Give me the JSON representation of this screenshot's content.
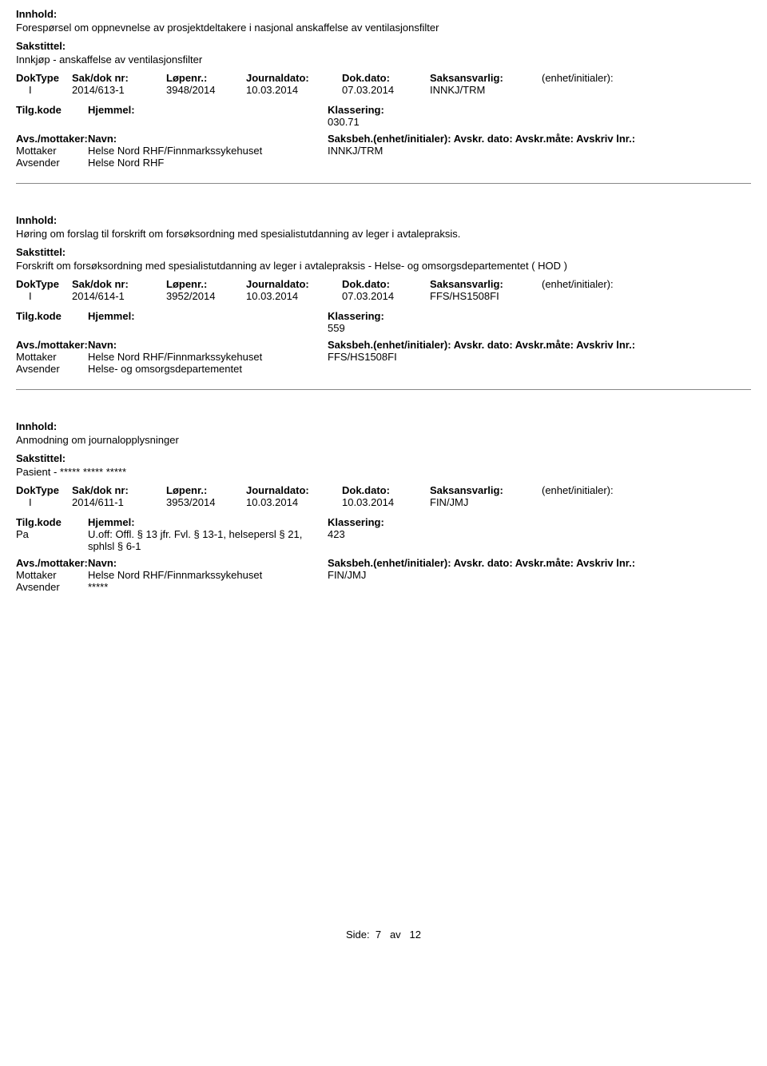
{
  "labels": {
    "innhold": "Innhold:",
    "sakstittel": "Sakstittel:",
    "doktype": "DokType",
    "sakdok": "Sak/dok nr:",
    "lopenr": "Løpenr.:",
    "journaldato": "Journaldato:",
    "dokdato": "Dok.dato:",
    "saksansvarlig": "Saksansvarlig:",
    "enhet": "(enhet/initialer):",
    "tilgkode": "Tilg.kode",
    "hjemmel": "Hjemmel:",
    "klassering": "Klassering:",
    "avsmottaker": "Avs./mottaker:",
    "navn": "Navn:",
    "saksbeh_line": "Saksbeh.(enhet/initialer): Avskr. dato:   Avskr.måte:  Avskriv lnr.:",
    "mottaker": "Mottaker",
    "avsender": "Avsender"
  },
  "records": [
    {
      "innhold": "Forespørsel om oppnevnelse av prosjektdeltakere i nasjonal anskaffelse av ventilasjonsfilter",
      "sakstittel": "Innkjøp - anskaffelse av ventilasjonsfilter",
      "doktype": "I",
      "sakdok": "2014/613-1",
      "lopenr": "3948/2014",
      "journaldato": "10.03.2014",
      "dokdato": "07.03.2014",
      "saksansvarlig": "INNKJ/TRM",
      "tilgkode": "",
      "hjemmel": "",
      "klassering": "030.71",
      "parties": [
        {
          "role_key": "mottaker",
          "navn": "Helse Nord RHF/Finnmarkssykehuset",
          "saksbeh": "INNKJ/TRM"
        },
        {
          "role_key": "avsender",
          "navn": "Helse Nord RHF",
          "saksbeh": ""
        }
      ]
    },
    {
      "innhold": "Høring om forslag til forskrift om forsøksordning med spesialistutdanning av leger i avtalepraksis.",
      "sakstittel": "Forskrift om forsøksordning med spesialistutdanning av leger i avtalepraksis - Helse- og omsorgsdepartementet ( HOD )",
      "doktype": "I",
      "sakdok": "2014/614-1",
      "lopenr": "3952/2014",
      "journaldato": "10.03.2014",
      "dokdato": "07.03.2014",
      "saksansvarlig": "FFS/HS1508FI",
      "tilgkode": "",
      "hjemmel": "",
      "klassering": "559",
      "parties": [
        {
          "role_key": "mottaker",
          "navn": "Helse Nord RHF/Finnmarkssykehuset",
          "saksbeh": "FFS/HS1508FI"
        },
        {
          "role_key": "avsender",
          "navn": "Helse- og omsorgsdepartementet",
          "saksbeh": ""
        }
      ]
    },
    {
      "innhold": "Anmodning om journalopplysninger",
      "sakstittel": "Pasient - ***** ***** *****",
      "doktype": "I",
      "sakdok": "2014/611-1",
      "lopenr": "3953/2014",
      "journaldato": "10.03.2014",
      "dokdato": "10.03.2014",
      "saksansvarlig": "FIN/JMJ",
      "tilgkode": "Pa",
      "hjemmel": "U.off: Offl. § 13 jfr. Fvl. § 13-1, helsepersl § 21, sphlsl § 6-1",
      "klassering": "423",
      "parties": [
        {
          "role_key": "mottaker",
          "navn": "Helse Nord RHF/Finnmarkssykehuset",
          "saksbeh": "FIN/JMJ"
        },
        {
          "role_key": "avsender",
          "navn": "*****",
          "saksbeh": ""
        }
      ]
    }
  ],
  "footer": {
    "prefix": "Side:",
    "page": "7",
    "mid": "av",
    "total": "12"
  }
}
